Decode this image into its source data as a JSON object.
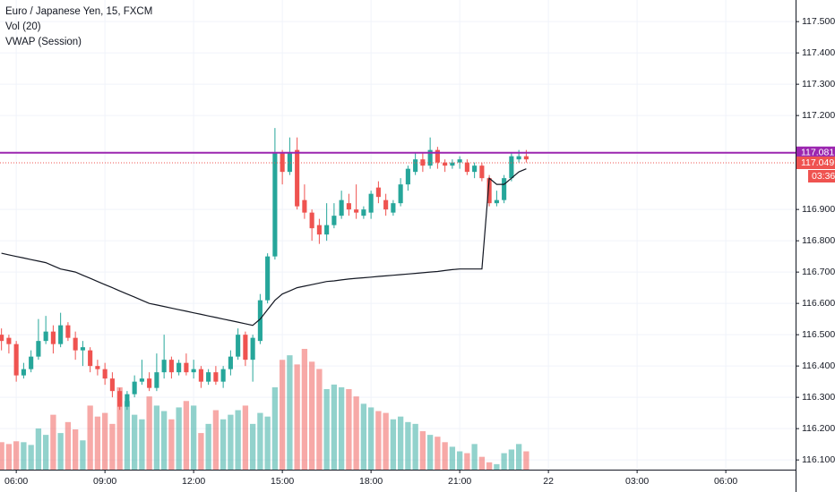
{
  "chart_data": {
    "type": "candlestick",
    "title": "Euro / Japanese Yen, 15, FXCM",
    "indicators": [
      "Vol (20)",
      "VWAP (Session)"
    ],
    "up_color": "#26a69a",
    "down_color": "#ef5350",
    "vwap_color": "#131722",
    "grid": true,
    "xlim": [
      5.45,
      32.36
    ],
    "xticks": [
      {
        "value": 6,
        "label": "06:00"
      },
      {
        "value": 9,
        "label": "09:00"
      },
      {
        "value": 12,
        "label": "12:00"
      },
      {
        "value": 15,
        "label": "15:00"
      },
      {
        "value": 18,
        "label": "18:00"
      },
      {
        "value": 21,
        "label": "21:00"
      },
      {
        "value": 24,
        "label": "22"
      },
      {
        "value": 27,
        "label": "03:00"
      },
      {
        "value": 30,
        "label": "06:00"
      }
    ],
    "ylim": [
      116.069,
      117.569
    ],
    "yticks": [
      {
        "value": 116.1,
        "label": "116.100"
      },
      {
        "value": 116.2,
        "label": "116.200"
      },
      {
        "value": 116.3,
        "label": "116.300"
      },
      {
        "value": 116.4,
        "label": "116.400"
      },
      {
        "value": 116.5,
        "label": "116.500"
      },
      {
        "value": 116.6,
        "label": "116.600"
      },
      {
        "value": 116.7,
        "label": "116.700"
      },
      {
        "value": 116.8,
        "label": "116.800"
      },
      {
        "value": 116.9,
        "label": "116.900"
      },
      {
        "value": 117.2,
        "label": "117.200"
      },
      {
        "value": 117.3,
        "label": "117.300"
      },
      {
        "value": 117.4,
        "label": "117.400"
      },
      {
        "value": 117.5,
        "label": "117.500"
      }
    ],
    "horizontal_line": {
      "value": 117.081,
      "label": "117.081",
      "color": "#9c27b0"
    },
    "last_price": {
      "value": 117.049,
      "label": "117.049",
      "countdown": "03:36"
    },
    "x": [
      5.5,
      5.75,
      6,
      6.25,
      6.5,
      6.75,
      7,
      7.25,
      7.5,
      7.75,
      8,
      8.25,
      8.5,
      8.75,
      9,
      9.25,
      9.5,
      9.75,
      10,
      10.25,
      10.5,
      10.75,
      11,
      11.25,
      11.5,
      11.75,
      12,
      12.25,
      12.5,
      12.75,
      13,
      13.25,
      13.5,
      13.75,
      14,
      14.25,
      14.5,
      14.75,
      15,
      15.25,
      15.5,
      15.75,
      16,
      16.25,
      16.5,
      16.75,
      17,
      17.25,
      17.5,
      17.75,
      18,
      18.25,
      18.5,
      18.75,
      19,
      19.25,
      19.5,
      19.75,
      20,
      20.25,
      20.5,
      20.75,
      21,
      21.25,
      21.5,
      21.75,
      22,
      22.25,
      22.5,
      22.75,
      23,
      23.25
    ],
    "open": [
      116.5,
      116.49,
      116.47,
      116.37,
      116.39,
      116.43,
      116.48,
      116.51,
      116.47,
      116.53,
      116.49,
      116.45,
      116.45,
      116.4,
      116.39,
      116.36,
      116.32,
      116.27,
      116.31,
      116.35,
      116.36,
      116.33,
      116.38,
      116.42,
      116.38,
      116.41,
      116.38,
      116.39,
      116.35,
      116.38,
      116.35,
      116.39,
      116.43,
      116.5,
      116.42,
      116.48,
      116.61,
      116.75,
      117.08,
      117.02,
      117.09,
      116.93,
      116.89,
      116.85,
      116.82,
      116.85,
      116.88,
      116.92,
      116.9,
      116.88,
      116.89,
      116.97,
      116.93,
      116.89,
      116.92,
      116.98,
      117.02,
      117.06,
      117.04,
      117.09,
      117.05,
      117.04,
      117.05,
      117.05,
      117.02,
      117.04,
      117.0,
      116.92,
      116.93,
      117.0,
      117.06,
      117.07
    ],
    "high": [
      116.52,
      116.5,
      116.48,
      116.41,
      116.45,
      116.55,
      116.56,
      116.53,
      116.57,
      116.54,
      116.51,
      116.48,
      116.46,
      116.42,
      116.41,
      116.38,
      116.33,
      116.32,
      116.37,
      116.42,
      116.38,
      116.44,
      116.5,
      116.43,
      116.42,
      116.44,
      116.42,
      116.4,
      116.39,
      116.4,
      116.4,
      116.45,
      116.52,
      116.51,
      116.5,
      116.63,
      116.76,
      117.16,
      117.09,
      117.13,
      117.13,
      116.98,
      116.9,
      116.87,
      116.92,
      116.92,
      116.96,
      116.95,
      116.98,
      116.91,
      116.96,
      116.99,
      116.95,
      116.93,
      117.0,
      117.04,
      117.08,
      117.08,
      117.13,
      117.1,
      117.06,
      117.06,
      117.07,
      117.06,
      117.05,
      117.05,
      117.01,
      116.96,
      117.01,
      117.08,
      117.09,
      117.09
    ],
    "low": [
      116.45,
      116.44,
      116.35,
      116.36,
      116.38,
      116.42,
      116.47,
      116.44,
      116.46,
      116.48,
      116.42,
      116.4,
      116.38,
      116.37,
      116.34,
      116.3,
      116.26,
      116.26,
      116.3,
      116.34,
      116.32,
      116.32,
      116.36,
      116.36,
      116.37,
      116.37,
      116.36,
      116.33,
      116.34,
      116.34,
      116.33,
      116.37,
      116.42,
      116.4,
      116.35,
      116.47,
      116.6,
      116.74,
      116.98,
      117.01,
      116.9,
      116.87,
      116.8,
      116.79,
      116.8,
      116.84,
      116.87,
      116.88,
      116.87,
      116.87,
      116.87,
      116.92,
      116.88,
      116.88,
      116.91,
      116.96,
      117.01,
      117.02,
      117.03,
      117.03,
      117.02,
      117.03,
      117.03,
      117.01,
      117.0,
      116.99,
      116.91,
      116.91,
      116.92,
      116.99,
      117.05,
      117.05
    ],
    "close": [
      116.48,
      116.47,
      116.37,
      116.39,
      116.43,
      116.48,
      116.51,
      116.47,
      116.53,
      116.49,
      116.45,
      116.46,
      116.4,
      116.39,
      116.36,
      116.32,
      116.27,
      116.31,
      116.35,
      116.36,
      116.33,
      116.38,
      116.42,
      116.38,
      116.41,
      116.38,
      116.39,
      116.35,
      116.38,
      116.35,
      116.39,
      116.43,
      116.5,
      116.42,
      116.49,
      116.61,
      116.75,
      117.08,
      117.02,
      117.08,
      116.91,
      116.89,
      116.84,
      116.82,
      116.85,
      116.88,
      116.93,
      116.9,
      116.89,
      116.9,
      116.95,
      116.94,
      116.9,
      116.92,
      116.98,
      117.03,
      117.06,
      117.04,
      117.09,
      117.05,
      117.04,
      117.05,
      117.06,
      117.02,
      117.04,
      117.0,
      116.92,
      116.93,
      117.0,
      117.07,
      117.07,
      117.06
    ],
    "volume": [
      30,
      28,
      31,
      30,
      27,
      45,
      38,
      60,
      40,
      52,
      44,
      32,
      70,
      58,
      62,
      50,
      90,
      75,
      60,
      55,
      80,
      70,
      64,
      55,
      68,
      75,
      70,
      40,
      50,
      65,
      55,
      60,
      65,
      70,
      50,
      62,
      58,
      90,
      120,
      125,
      115,
      132,
      118,
      110,
      88,
      93,
      90,
      88,
      80,
      72,
      68,
      64,
      62,
      55,
      58,
      52,
      50,
      42,
      38,
      36,
      30,
      25,
      20,
      18,
      28,
      14,
      8,
      6,
      18,
      22,
      28,
      20
    ],
    "vwap": [
      116.76,
      116.755,
      116.75,
      116.745,
      116.74,
      116.735,
      116.73,
      116.72,
      116.71,
      116.705,
      116.7,
      116.69,
      116.68,
      116.67,
      116.66,
      116.65,
      116.64,
      116.63,
      116.62,
      116.61,
      116.6,
      116.595,
      116.59,
      116.585,
      116.58,
      116.575,
      116.57,
      116.565,
      116.56,
      116.555,
      116.55,
      116.545,
      116.54,
      116.535,
      116.53,
      116.55,
      116.58,
      116.61,
      116.63,
      116.64,
      116.65,
      116.655,
      116.66,
      116.665,
      116.67,
      116.672,
      116.675,
      116.678,
      116.68,
      116.682,
      116.684,
      116.686,
      116.688,
      116.69,
      116.692,
      116.694,
      116.696,
      116.698,
      116.7,
      116.702,
      116.705,
      116.708,
      116.71,
      116.71,
      116.71,
      116.71,
      117.0,
      116.98,
      116.98,
      117.0,
      117.02,
      117.03
    ]
  }
}
